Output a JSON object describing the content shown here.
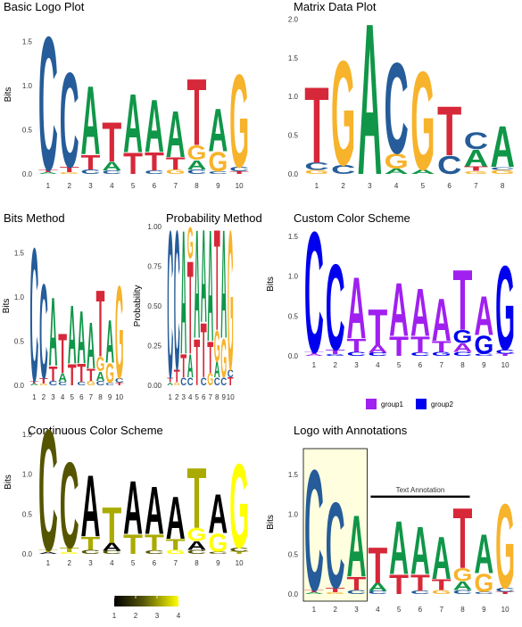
{
  "colors": {
    "A": "#109648",
    "C": "#255C99",
    "G": "#F7B32B",
    "T": "#D62839",
    "group1": "#A020F0",
    "group2": "#0000EE",
    "annotation_fill": "#FFFFE0"
  },
  "chart_data": [
    {
      "id": "basic",
      "type": "sequence_logo",
      "title": "Basic Logo Plot",
      "ylabel": "Bits",
      "ylim": [
        0,
        1.8
      ],
      "yticks": [
        "0.0",
        "0.5",
        "1.0",
        "1.5"
      ],
      "ytick_values": [
        0,
        0.5,
        1.0,
        1.5
      ],
      "xticks": [
        "1",
        "2",
        "3",
        "4",
        "5",
        "6",
        "7",
        "8",
        "9",
        "10"
      ],
      "color_scheme": "nucleotide",
      "positions": [
        [
          [
            "A",
            0.02
          ],
          [
            "T",
            0.03
          ],
          [
            "C",
            1.55
          ]
        ],
        [
          [
            "G",
            0.02
          ],
          [
            "T",
            0.06
          ],
          [
            "C",
            1.1
          ]
        ],
        [
          [
            "C",
            0.05
          ],
          [
            "T",
            0.17
          ],
          [
            "A",
            0.79
          ]
        ],
        [
          [
            "C",
            0.04
          ],
          [
            "A",
            0.1
          ],
          [
            "T",
            0.46
          ]
        ],
        [
          [
            "T",
            0.25
          ],
          [
            "A",
            0.68
          ]
        ],
        [
          [
            "C",
            0.04
          ],
          [
            "T",
            0.21
          ],
          [
            "A",
            0.61
          ]
        ],
        [
          [
            "G",
            0.05
          ],
          [
            "T",
            0.14
          ],
          [
            "A",
            0.54
          ]
        ],
        [
          [
            "C",
            0.05
          ],
          [
            "A",
            0.11
          ],
          [
            "G",
            0.17
          ],
          [
            "T",
            0.77
          ]
        ],
        [
          [
            "C",
            0.03
          ],
          [
            "G",
            0.23
          ],
          [
            "A",
            0.5
          ]
        ],
        [
          [
            "T",
            0.03
          ],
          [
            "C",
            0.05
          ],
          [
            "G",
            1.08
          ]
        ]
      ]
    },
    {
      "id": "matrix",
      "type": "sequence_logo",
      "title": "Matrix Data Plot",
      "ylabel": "",
      "ylim": [
        0,
        2.05
      ],
      "yticks": [
        "0.0",
        "0.5",
        "1.0",
        "1.5",
        "2.0"
      ],
      "ytick_values": [
        0,
        0.5,
        1.0,
        1.5,
        2.0
      ],
      "xticks": [
        "1",
        "2",
        "3",
        "4",
        "5",
        "6",
        "7",
        "8"
      ],
      "color_scheme": "nucleotide",
      "positions": [
        [
          [
            "G",
            0.05
          ],
          [
            "C",
            0.1
          ],
          [
            "T",
            1.0
          ]
        ],
        [
          [
            "C",
            0.12
          ],
          [
            "G",
            1.38
          ]
        ],
        [
          [
            "A",
            2.0
          ]
        ],
        [
          [
            "A",
            0.07
          ],
          [
            "G",
            0.2
          ],
          [
            "C",
            1.2
          ]
        ],
        [
          [
            "A",
            0.06
          ],
          [
            "G",
            1.3
          ]
        ],
        [
          [
            "C",
            0.24
          ],
          [
            "T",
            0.65
          ]
        ],
        [
          [
            "G",
            0.04
          ],
          [
            "T",
            0.06
          ],
          [
            "A",
            0.22
          ],
          [
            "C",
            0.22
          ]
        ],
        [
          [
            "G",
            0.05
          ],
          [
            "C",
            0.04
          ],
          [
            "A",
            0.54
          ]
        ]
      ]
    },
    {
      "id": "bits",
      "type": "sequence_logo",
      "title": "Bits Method",
      "ylabel": "Bits",
      "ylim": [
        0,
        1.8
      ],
      "yticks": [
        "0.0",
        "0.5",
        "1.0",
        "1.5"
      ],
      "ytick_values": [
        0,
        0.5,
        1.0,
        1.5
      ],
      "xticks": [
        "1",
        "2",
        "3",
        "4",
        "5",
        "6",
        "7",
        "8",
        "9",
        "10"
      ],
      "color_scheme": "nucleotide",
      "positions": [
        [
          [
            "A",
            0.02
          ],
          [
            "T",
            0.03
          ],
          [
            "C",
            1.55
          ]
        ],
        [
          [
            "G",
            0.02
          ],
          [
            "T",
            0.06
          ],
          [
            "C",
            1.1
          ]
        ],
        [
          [
            "C",
            0.05
          ],
          [
            "T",
            0.17
          ],
          [
            "A",
            0.79
          ]
        ],
        [
          [
            "C",
            0.04
          ],
          [
            "A",
            0.1
          ],
          [
            "T",
            0.46
          ]
        ],
        [
          [
            "T",
            0.25
          ],
          [
            "A",
            0.68
          ]
        ],
        [
          [
            "C",
            0.04
          ],
          [
            "T",
            0.21
          ],
          [
            "A",
            0.61
          ]
        ],
        [
          [
            "G",
            0.05
          ],
          [
            "T",
            0.14
          ],
          [
            "A",
            0.54
          ]
        ],
        [
          [
            "C",
            0.05
          ],
          [
            "A",
            0.11
          ],
          [
            "G",
            0.17
          ],
          [
            "T",
            0.77
          ]
        ],
        [
          [
            "C",
            0.03
          ],
          [
            "G",
            0.23
          ],
          [
            "A",
            0.5
          ]
        ],
        [
          [
            "T",
            0.03
          ],
          [
            "C",
            0.05
          ],
          [
            "G",
            1.08
          ]
        ]
      ]
    },
    {
      "id": "prob",
      "type": "sequence_logo",
      "title": "Probability Method",
      "ylabel": "Probability",
      "ylim": [
        0,
        1.0
      ],
      "yticks": [
        "0.00",
        "0.25",
        "0.50",
        "0.75",
        "1.00"
      ],
      "ytick_values": [
        0,
        0.25,
        0.5,
        0.75,
        1.0
      ],
      "xticks": [
        "1",
        "2",
        "3",
        "4",
        "5",
        "6",
        "7",
        "8",
        "9",
        "10"
      ],
      "color_scheme": "nucleotide",
      "positions": [
        [
          [
            "A",
            0.02
          ],
          [
            "T",
            0.03
          ],
          [
            "C",
            0.95
          ]
        ],
        [
          [
            "G",
            0.02
          ],
          [
            "T",
            0.08
          ],
          [
            "C",
            0.9
          ]
        ],
        [
          [
            "C",
            0.05
          ],
          [
            "T",
            0.15
          ],
          [
            "A",
            0.8
          ]
        ],
        [
          [
            "C",
            0.05
          ],
          [
            "A",
            0.15
          ],
          [
            "T",
            0.6
          ],
          [
            "G",
            0.2
          ]
        ],
        [
          [
            "T",
            0.3
          ],
          [
            "A",
            0.7
          ]
        ],
        [
          [
            "C",
            0.05
          ],
          [
            "T",
            0.35
          ],
          [
            "A",
            0.6
          ]
        ],
        [
          [
            "G",
            0.08
          ],
          [
            "T",
            0.2
          ],
          [
            "A",
            0.72
          ]
        ],
        [
          [
            "C",
            0.05
          ],
          [
            "A",
            0.1
          ],
          [
            "G",
            0.2
          ],
          [
            "T",
            0.65
          ]
        ],
        [
          [
            "C",
            0.05
          ],
          [
            "G",
            0.25
          ],
          [
            "A",
            0.7
          ]
        ],
        [
          [
            "T",
            0.05
          ],
          [
            "C",
            0.05
          ],
          [
            "G",
            0.9
          ]
        ]
      ]
    },
    {
      "id": "custom",
      "type": "sequence_logo",
      "title": "Custom Color Scheme",
      "ylabel": "Bits",
      "ylim": [
        0,
        1.8
      ],
      "yticks": [
        "0.0",
        "0.5",
        "1.0",
        "1.5"
      ],
      "ytick_values": [
        0,
        0.5,
        1.0,
        1.5
      ],
      "xticks": [
        "1",
        "2",
        "3",
        "4",
        "5",
        "6",
        "7",
        "8",
        "9",
        "10"
      ],
      "color_scheme": "custom",
      "custom_colors": {
        "A": "#A020F0",
        "T": "#A020F0",
        "C": "#0000EE",
        "G": "#0000EE"
      },
      "legend": [
        "group1",
        "group2"
      ],
      "positions": [
        [
          [
            "A",
            0.02
          ],
          [
            "T",
            0.03
          ],
          [
            "C",
            1.55
          ]
        ],
        [
          [
            "G",
            0.02
          ],
          [
            "T",
            0.06
          ],
          [
            "C",
            1.1
          ]
        ],
        [
          [
            "C",
            0.05
          ],
          [
            "T",
            0.17
          ],
          [
            "A",
            0.79
          ]
        ],
        [
          [
            "C",
            0.04
          ],
          [
            "A",
            0.1
          ],
          [
            "T",
            0.46
          ]
        ],
        [
          [
            "T",
            0.25
          ],
          [
            "A",
            0.68
          ]
        ],
        [
          [
            "C",
            0.04
          ],
          [
            "T",
            0.21
          ],
          [
            "A",
            0.61
          ]
        ],
        [
          [
            "G",
            0.05
          ],
          [
            "T",
            0.14
          ],
          [
            "A",
            0.54
          ]
        ],
        [
          [
            "C",
            0.05
          ],
          [
            "A",
            0.11
          ],
          [
            "G",
            0.17
          ],
          [
            "T",
            0.77
          ]
        ],
        [
          [
            "C",
            0.03
          ],
          [
            "G",
            0.23
          ],
          [
            "A",
            0.5
          ]
        ],
        [
          [
            "T",
            0.03
          ],
          [
            "C",
            0.05
          ],
          [
            "G",
            1.08
          ]
        ]
      ]
    },
    {
      "id": "continuous",
      "type": "sequence_logo",
      "title": "Continuous Color Scheme",
      "ylabel": "Bits",
      "ylim": [
        0,
        1.8
      ],
      "yticks": [
        "0.0",
        "0.5",
        "1.0",
        "1.5"
      ],
      "ytick_values": [
        0,
        0.5,
        1.0,
        1.5
      ],
      "xticks": [
        "1",
        "2",
        "3",
        "4",
        "5",
        "6",
        "7",
        "8",
        "9",
        "10"
      ],
      "color_scheme": "continuous",
      "letter_values": {
        "A": 1,
        "C": 2,
        "T": 3,
        "G": 4
      },
      "colorbar": {
        "ticks": [
          "1",
          "2",
          "3",
          "4"
        ],
        "min": 1,
        "max": 4,
        "low": "#000000",
        "high": "#FFFF00"
      },
      "positions": [
        [
          [
            "A",
            0.02
          ],
          [
            "T",
            0.03
          ],
          [
            "C",
            1.55
          ]
        ],
        [
          [
            "G",
            0.02
          ],
          [
            "T",
            0.06
          ],
          [
            "C",
            1.1
          ]
        ],
        [
          [
            "C",
            0.05
          ],
          [
            "T",
            0.17
          ],
          [
            "A",
            0.79
          ]
        ],
        [
          [
            "C",
            0.04
          ],
          [
            "A",
            0.1
          ],
          [
            "T",
            0.46
          ]
        ],
        [
          [
            "T",
            0.25
          ],
          [
            "A",
            0.68
          ]
        ],
        [
          [
            "C",
            0.04
          ],
          [
            "T",
            0.21
          ],
          [
            "A",
            0.61
          ]
        ],
        [
          [
            "G",
            0.05
          ],
          [
            "T",
            0.14
          ],
          [
            "A",
            0.54
          ]
        ],
        [
          [
            "C",
            0.05
          ],
          [
            "A",
            0.11
          ],
          [
            "G",
            0.17
          ],
          [
            "T",
            0.77
          ]
        ],
        [
          [
            "C",
            0.03
          ],
          [
            "G",
            0.23
          ],
          [
            "A",
            0.5
          ]
        ],
        [
          [
            "T",
            0.03
          ],
          [
            "C",
            0.05
          ],
          [
            "G",
            1.08
          ]
        ]
      ]
    },
    {
      "id": "annot",
      "type": "sequence_logo",
      "title": "Logo with Annotations",
      "ylabel": "Bits",
      "ylim": [
        0,
        1.8
      ],
      "yticks": [
        "0.0",
        "0.5",
        "1.0",
        "1.5"
      ],
      "ytick_values": [
        0,
        0.5,
        1.0,
        1.5
      ],
      "xticks": [
        "1",
        "2",
        "3",
        "4",
        "5",
        "6",
        "7",
        "8",
        "9",
        "10"
      ],
      "color_scheme": "nucleotide",
      "annotation": {
        "text": "Text Annotation",
        "segment_x": [
          4,
          8
        ],
        "segment_y": 1.22,
        "rect_x": [
          0.5,
          3.5
        ]
      },
      "positions": [
        [
          [
            "A",
            0.02
          ],
          [
            "T",
            0.03
          ],
          [
            "C",
            1.55
          ]
        ],
        [
          [
            "G",
            0.02
          ],
          [
            "T",
            0.06
          ],
          [
            "C",
            1.1
          ]
        ],
        [
          [
            "C",
            0.05
          ],
          [
            "T",
            0.17
          ],
          [
            "A",
            0.79
          ]
        ],
        [
          [
            "C",
            0.04
          ],
          [
            "A",
            0.1
          ],
          [
            "T",
            0.46
          ]
        ],
        [
          [
            "T",
            0.25
          ],
          [
            "A",
            0.68
          ]
        ],
        [
          [
            "C",
            0.04
          ],
          [
            "T",
            0.21
          ],
          [
            "A",
            0.61
          ]
        ],
        [
          [
            "G",
            0.05
          ],
          [
            "T",
            0.14
          ],
          [
            "A",
            0.54
          ]
        ],
        [
          [
            "C",
            0.05
          ],
          [
            "A",
            0.11
          ],
          [
            "G",
            0.17
          ],
          [
            "T",
            0.77
          ]
        ],
        [
          [
            "C",
            0.03
          ],
          [
            "G",
            0.23
          ],
          [
            "A",
            0.5
          ]
        ],
        [
          [
            "T",
            0.03
          ],
          [
            "C",
            0.05
          ],
          [
            "G",
            1.08
          ]
        ]
      ]
    }
  ]
}
